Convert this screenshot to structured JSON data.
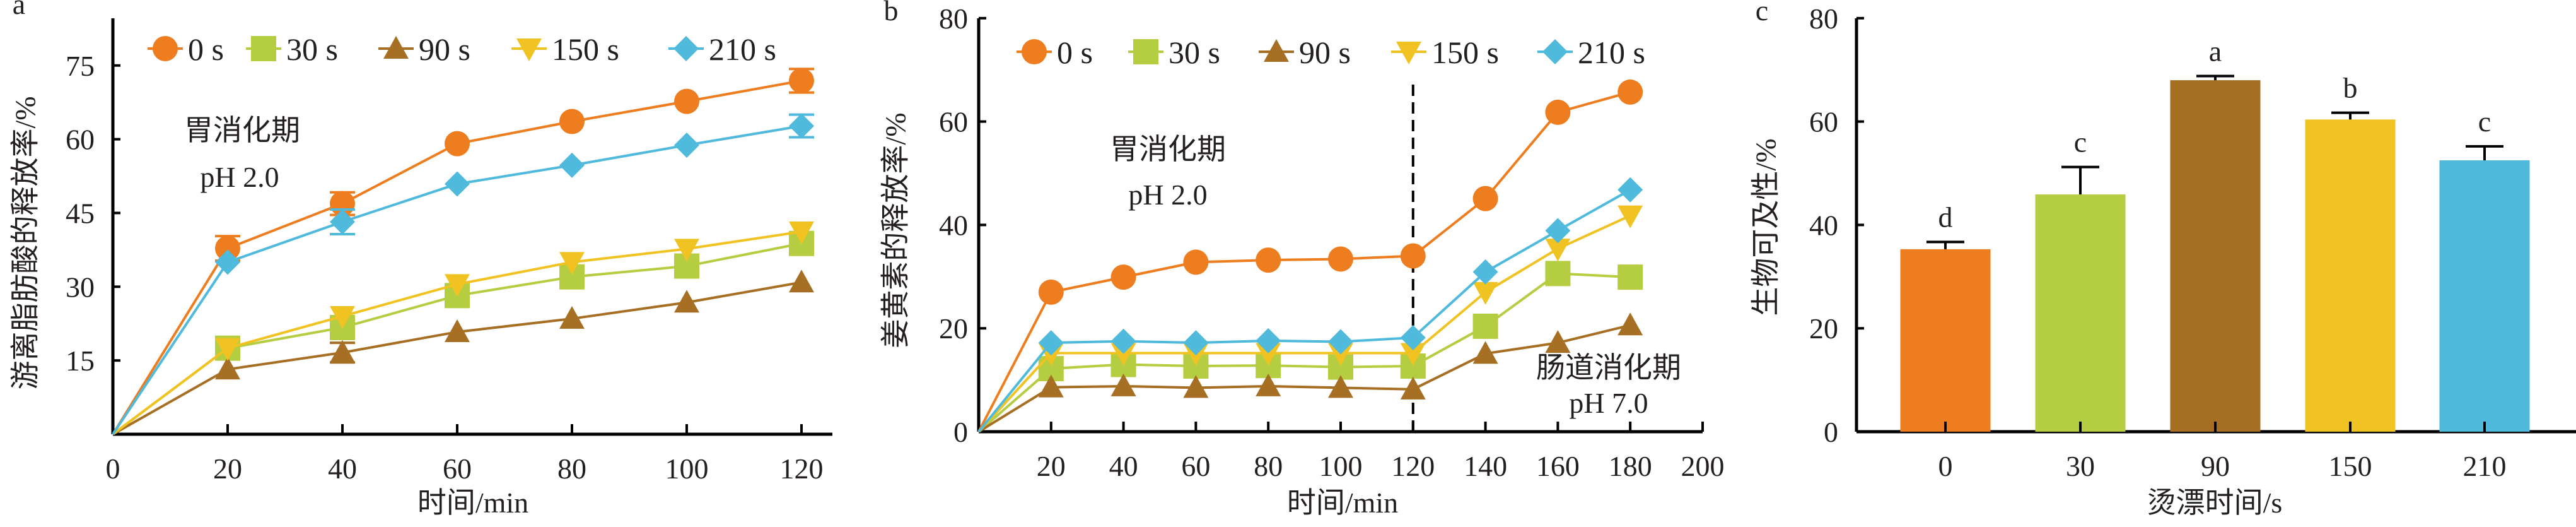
{
  "colors": {
    "0 s": "#ED7D1F",
    "30 s": "#B5CD41",
    "90 s": "#A66F24",
    "150 s": "#F0C322",
    "210 s": "#4FBADC"
  },
  "chart_data": [
    {
      "panel": "a",
      "type": "line",
      "xlabel": "时间/min",
      "ylabel": "游离脂肪酸的释放率/%",
      "xlim": [
        0,
        126
      ],
      "ylim": [
        0,
        85
      ],
      "xticks": [
        0,
        20,
        40,
        60,
        80,
        100,
        120
      ],
      "yticks": [
        15,
        30,
        45,
        60,
        75
      ],
      "annotations": [
        "胃消化期",
        "pH 2.0"
      ],
      "x": [
        0,
        20,
        40,
        60,
        80,
        100,
        120
      ],
      "series": [
        {
          "name": "0 s",
          "marker": "circle",
          "values": [
            0,
            37.8,
            46.9,
            59.1,
            63.6,
            67.7,
            71.9
          ],
          "error": [
            0,
            2.5,
            2.3,
            0,
            0,
            0,
            2.4
          ]
        },
        {
          "name": "30 s",
          "marker": "square",
          "values": [
            0,
            17.5,
            21.7,
            28.2,
            32.0,
            34.2,
            38.8
          ],
          "error": [
            0,
            0,
            0,
            0,
            0,
            0,
            0
          ]
        },
        {
          "name": "90 s",
          "marker": "triangle-up",
          "values": [
            0,
            13.2,
            16.6,
            20.8,
            23.5,
            26.8,
            30.9
          ],
          "error": [
            0,
            0,
            2.0,
            0,
            0,
            0,
            0
          ]
        },
        {
          "name": "150 s",
          "marker": "triangle-down",
          "values": [
            0,
            17.5,
            24.0,
            30.5,
            35.0,
            37.7,
            41.2
          ],
          "error": [
            0,
            0,
            0,
            0,
            0,
            0,
            0
          ]
        },
        {
          "name": "210 s",
          "marker": "diamond",
          "values": [
            0,
            35.0,
            43.2,
            50.9,
            54.7,
            58.8,
            62.7
          ],
          "error": [
            0,
            0,
            2.5,
            0,
            0,
            0,
            2.3
          ]
        }
      ],
      "legend": "top"
    },
    {
      "panel": "b",
      "type": "line",
      "xlabel": "时间/min",
      "ylabel": "姜黄素的释放率/%",
      "xlim": [
        0,
        200
      ],
      "ylim": [
        0,
        80
      ],
      "xticks": [
        20,
        40,
        60,
        80,
        100,
        120,
        140,
        160,
        180,
        200
      ],
      "yticks": [
        0,
        20,
        40,
        60,
        80
      ],
      "annotations": [
        "胃消化期",
        "pH 2.0",
        "肠道消化期",
        "pH 7.0"
      ],
      "divider_x": 120,
      "x": [
        0,
        20,
        40,
        60,
        80,
        100,
        120,
        140,
        160,
        180
      ],
      "series": [
        {
          "name": "0 s",
          "marker": "circle",
          "values": [
            0,
            27.0,
            29.9,
            32.8,
            33.2,
            33.4,
            34.0,
            45.1,
            61.8,
            65.7
          ]
        },
        {
          "name": "30 s",
          "marker": "square",
          "values": [
            0,
            12.2,
            13.0,
            12.7,
            12.8,
            12.5,
            12.7,
            20.4,
            30.6,
            29.9
          ]
        },
        {
          "name": "90 s",
          "marker": "triangle-up",
          "values": [
            0,
            8.6,
            8.8,
            8.5,
            8.8,
            8.5,
            8.2,
            15.1,
            17.2,
            20.6
          ]
        },
        {
          "name": "150 s",
          "marker": "triangle-down",
          "values": [
            0,
            15.2,
            15.2,
            15.2,
            15.2,
            15.2,
            15.2,
            27.0,
            35.4,
            41.8
          ]
        },
        {
          "name": "210 s",
          "marker": "diamond",
          "values": [
            0,
            17.2,
            17.5,
            17.2,
            17.6,
            17.4,
            18.2,
            30.9,
            38.9,
            46.8
          ]
        }
      ],
      "legend": "top"
    },
    {
      "panel": "c",
      "type": "bar",
      "xlabel": "烫漂时间/s",
      "ylabel": "生物可及性/%",
      "ylim": [
        0,
        80
      ],
      "yticks": [
        0,
        20,
        40,
        60,
        80
      ],
      "categories": [
        "0",
        "30",
        "90",
        "150",
        "210"
      ],
      "values": [
        35.3,
        45.9,
        68.0,
        60.4,
        52.5
      ],
      "error": [
        1.4,
        5.3,
        0.8,
        1.3,
        2.7
      ],
      "significance": [
        "d",
        "c",
        "a",
        "b",
        "c"
      ]
    }
  ]
}
